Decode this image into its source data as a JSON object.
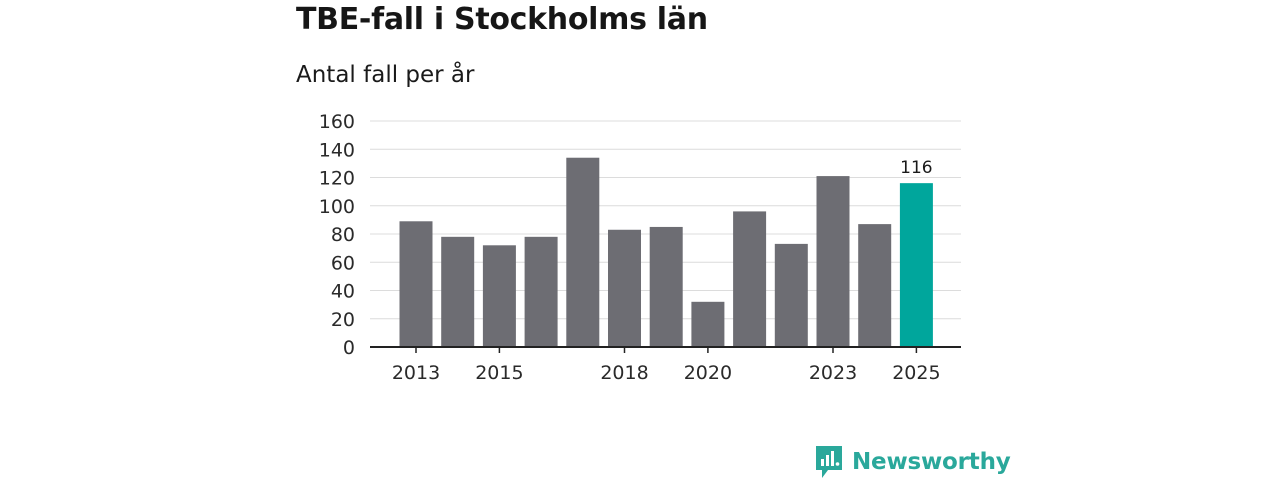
{
  "title": "TBE-fall i Stockholms län",
  "subtitle": "Antal fall per år",
  "brand": {
    "name": "Newsworthy",
    "icon": "newsworthy-logo-icon",
    "color": "#2aa89b"
  },
  "colors": {
    "bar": "#6d6d73",
    "highlight": "#00a69c",
    "grid": "#dcdcdc",
    "axis": "#222222"
  },
  "chart_data": {
    "type": "bar",
    "title": "TBE-fall i Stockholms län",
    "subtitle": "Antal fall per år",
    "xlabel": "",
    "ylabel": "Antal fall per år",
    "categories": [
      "2013",
      "2014",
      "2015",
      "2016",
      "2017",
      "2018",
      "2019",
      "2020",
      "2021",
      "2022",
      "2023",
      "2024",
      "2025"
    ],
    "values": [
      89,
      78,
      72,
      78,
      134,
      83,
      85,
      32,
      96,
      73,
      121,
      87,
      116
    ],
    "ylim": [
      0,
      160
    ],
    "yticks": [
      0,
      20,
      40,
      60,
      80,
      100,
      120,
      140,
      160
    ],
    "xtick_labels": [
      "2013",
      "2015",
      "2018",
      "2020",
      "2023",
      "2025"
    ],
    "highlight": {
      "category": "2025",
      "label": "116"
    },
    "grid": true
  }
}
